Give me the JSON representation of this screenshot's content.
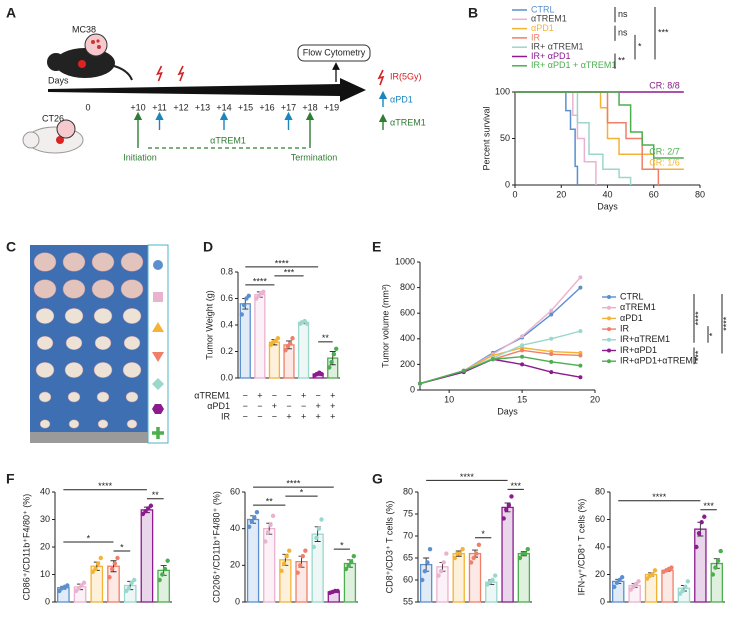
{
  "panels": [
    "A",
    "B",
    "C",
    "D",
    "E",
    "F",
    "G"
  ],
  "schematic": {
    "mouse_top": "MC38",
    "mouse_bottom": "CT26",
    "days_label": "Days",
    "days": [
      "0",
      "+10",
      "+11",
      "+12",
      "+13",
      "+14",
      "+15",
      "+16",
      "+17",
      "+18",
      "+19"
    ],
    "flow": "Flow Cytometry",
    "legend": [
      "IR(5Gy)",
      "αPD1",
      "αTREM1"
    ],
    "initiation": "Initiation",
    "termination": "Termination",
    "dashed_label": "αTREM1"
  },
  "chart_data": [
    {
      "type": "step",
      "xlabel": "Days",
      "ylabel": "Percent survival",
      "xlim": [
        0,
        80
      ],
      "xticks": [
        0,
        20,
        40,
        60,
        80
      ],
      "ylim": [
        0,
        100
      ],
      "yticks": [
        0,
        50,
        100
      ],
      "series": [
        {
          "name": "CTRL",
          "color": "#5b8fd0",
          "x": [
            0,
            22,
            24,
            26,
            27
          ],
          "values": [
            100,
            80,
            60,
            20,
            0
          ]
        },
        {
          "name": "αTREM1",
          "color": "#e9b3cf",
          "x": [
            0,
            25,
            27,
            30,
            35
          ],
          "values": [
            100,
            75,
            50,
            25,
            0
          ]
        },
        {
          "name": "αPD1",
          "color": "#f5b335",
          "x": [
            0,
            37,
            40,
            45,
            60,
            73
          ],
          "values": [
            100,
            83,
            50,
            33,
            17,
            17
          ]
        },
        {
          "name": "IR",
          "color": "#ef7f68",
          "x": [
            0,
            40,
            48,
            55,
            62
          ],
          "values": [
            100,
            67,
            50,
            17,
            0
          ]
        },
        {
          "name": "IR+ αTREM1",
          "color": "#9ad7cc",
          "x": [
            0,
            27,
            32,
            38,
            45,
            50
          ],
          "values": [
            100,
            67,
            33,
            17,
            8,
            0
          ]
        },
        {
          "name": "IR+ αPD1",
          "color": "#8b1b8f",
          "x": [
            0,
            73
          ],
          "values": [
            100,
            100
          ]
        },
        {
          "name": "IR+ αPD1 + αTREM1",
          "color": "#4cae4f",
          "x": [
            0,
            45,
            50,
            55,
            60,
            73
          ],
          "values": [
            100,
            86,
            57,
            43,
            29,
            29
          ]
        }
      ],
      "significance": [
        {
          "series": [
            0,
            1
          ],
          "label": "ns"
        },
        {
          "series": [
            2,
            3
          ],
          "label": "ns"
        },
        {
          "series": [
            3,
            5
          ],
          "label": "*"
        },
        {
          "series": [
            5,
            6
          ],
          "label": "**"
        },
        {
          "series": [
            0,
            5
          ],
          "label": "***"
        }
      ],
      "annotations": [
        {
          "text": "CR: 8/8",
          "series": 5
        },
        {
          "text": "CR: 2/7",
          "series": 6
        },
        {
          "text": "CR: 1/6",
          "series": 2
        }
      ]
    },
    {
      "type": "bar",
      "ylabel": "Tumor Weight (g)",
      "ylim": [
        0,
        0.8
      ],
      "yticks": [
        {
          "value": 0,
          "label": "0.0"
        },
        {
          "value": 0.2,
          "label": "0.2"
        },
        {
          "value": 0.4,
          "label": "0.4"
        },
        {
          "value": 0.6,
          "label": "0.6"
        },
        {
          "value": 0.8,
          "label": "0.8"
        }
      ],
      "colors": [
        "#5b8fd0",
        "#e9b3cf",
        "#f5b335",
        "#ef7f68",
        "#9ad7cc",
        "#8b1b8f",
        "#4cae4f"
      ],
      "values": [
        0.56,
        0.63,
        0.27,
        0.25,
        0.42,
        0.03,
        0.15
      ],
      "errors": [
        0.04,
        0.02,
        0.02,
        0.03,
        0.01,
        0.01,
        0.05
      ],
      "points": [
        [
          0.48,
          0.55,
          0.6,
          0.62
        ],
        [
          0.6,
          0.62,
          0.64,
          0.65
        ],
        [
          0.25,
          0.27,
          0.28,
          0.3
        ],
        [
          0.21,
          0.24,
          0.26,
          0.3
        ],
        [
          0.41,
          0.42,
          0.43,
          0.41
        ],
        [
          0.02,
          0.03,
          0.04,
          0.03
        ],
        [
          0.08,
          0.12,
          0.18,
          0.22
        ]
      ],
      "brackets": [
        {
          "groups": [
            0,
            5
          ],
          "label": "****"
        },
        {
          "groups": [
            5,
            6
          ],
          "label": "**"
        },
        {
          "groups": [
            0,
            2
          ],
          "label": "****"
        },
        {
          "groups": [
            2,
            4
          ],
          "label": "***"
        }
      ],
      "table": [
        {
          "name": "αTREM1",
          "signs": [
            "−",
            "+",
            "−",
            "−",
            "+",
            "−",
            "+"
          ]
        },
        {
          "name": "αPD1",
          "signs": [
            "−",
            "−",
            "+",
            "−",
            "−",
            "+",
            "+"
          ]
        },
        {
          "name": "IR",
          "signs": [
            "−",
            "−",
            "−",
            "+",
            "+",
            "+",
            "+"
          ]
        }
      ]
    },
    {
      "type": "line",
      "xlabel": "Days",
      "ylabel": "Tumor volume (mm³)",
      "xlim": [
        8,
        20
      ],
      "xticks": [
        10,
        15,
        20
      ],
      "ylim": [
        0,
        1000
      ],
      "yticks": [
        0,
        200,
        400,
        600,
        800,
        1000
      ],
      "x": [
        8,
        11,
        13,
        15,
        17,
        19
      ],
      "series": [
        {
          "name": "CTRL",
          "color": "#5b8fd0",
          "values": [
            50,
            150,
            290,
            410,
            590,
            800
          ]
        },
        {
          "name": "αTREM1",
          "color": "#e9b3cf",
          "values": [
            50,
            150,
            280,
            420,
            620,
            880
          ]
        },
        {
          "name": "αPD1",
          "color": "#f5b335",
          "values": [
            50,
            150,
            270,
            330,
            300,
            290
          ]
        },
        {
          "name": "IR",
          "color": "#ef7f68",
          "values": [
            50,
            150,
            240,
            310,
            280,
            270
          ]
        },
        {
          "name": "IR+αTREM1",
          "color": "#9ad7cc",
          "values": [
            50,
            150,
            250,
            350,
            400,
            460
          ]
        },
        {
          "name": "IR+αPD1",
          "color": "#8b1b8f",
          "values": [
            50,
            140,
            240,
            200,
            140,
            100
          ]
        },
        {
          "name": "IR+αPD1+αTREM1",
          "color": "#4cae4f",
          "values": [
            50,
            150,
            240,
            260,
            220,
            190
          ]
        }
      ],
      "significance": [
        {
          "series": [
            0,
            4
          ],
          "label": "****"
        },
        {
          "series": [
            3,
            4
          ],
          "label": "*"
        },
        {
          "series": [
            0,
            5
          ],
          "label": "****"
        },
        {
          "series": [
            5,
            6
          ],
          "label": "***"
        }
      ]
    },
    {
      "type": "bar",
      "ylabel": "CD86⁺/CD11b⁺F4/80⁺ (%)",
      "ylim": [
        0,
        40
      ],
      "yticks": [
        0,
        10,
        20,
        30,
        40
      ],
      "colors": [
        "#5b8fd0",
        "#e9b3cf",
        "#f5b335",
        "#ef7f68",
        "#9ad7cc",
        "#8b1b8f",
        "#4cae4f"
      ],
      "values": [
        5.2,
        5.5,
        13,
        13,
        6,
        33.5,
        11.5
      ],
      "errors": [
        0.5,
        1,
        1.5,
        2,
        1.5,
        1,
        1.8
      ],
      "points": [
        [
          4,
          5,
          5.5,
          6
        ],
        [
          4,
          5,
          6,
          7
        ],
        [
          11,
          12,
          14,
          16
        ],
        [
          9,
          12,
          14,
          16
        ],
        [
          4,
          5,
          7,
          8
        ],
        [
          32,
          33,
          34,
          35
        ],
        [
          8,
          10,
          12,
          15
        ]
      ],
      "brackets": [
        {
          "groups": [
            0,
            5
          ],
          "label": "****"
        },
        {
          "groups": [
            5,
            6
          ],
          "label": "**"
        },
        {
          "groups": [
            0,
            3
          ],
          "label": "*"
        },
        {
          "groups": [
            3,
            4
          ],
          "label": "*"
        }
      ]
    },
    {
      "type": "bar",
      "ylabel": "CD206⁺/CD11b⁺F4/80⁺ (%)",
      "ylim": [
        0,
        60
      ],
      "yticks": [
        0,
        20,
        40,
        60
      ],
      "colors": [
        "#5b8fd0",
        "#e9b3cf",
        "#f5b335",
        "#ef7f68",
        "#9ad7cc",
        "#8b1b8f",
        "#4cae4f"
      ],
      "values": [
        45,
        40,
        23,
        22,
        37,
        5.5,
        21
      ],
      "errors": [
        2,
        3,
        3,
        3,
        4,
        0.3,
        2
      ],
      "points": [
        [
          41,
          44,
          46,
          49
        ],
        [
          33,
          38,
          42,
          47
        ],
        [
          17,
          21,
          25,
          28
        ],
        [
          16,
          20,
          25,
          28
        ],
        [
          30,
          35,
          40,
          45
        ],
        [
          5,
          5.5,
          6,
          6
        ],
        [
          18,
          20,
          22,
          25
        ]
      ],
      "brackets": [
        {
          "groups": [
            0,
            5
          ],
          "label": "****"
        },
        {
          "groups": [
            5,
            6
          ],
          "label": "*"
        },
        {
          "groups": [
            0,
            2
          ],
          "label": "**"
        },
        {
          "groups": [
            2,
            4
          ],
          "label": "*"
        }
      ]
    },
    {
      "type": "bar",
      "ylabel": "CD8⁺/CD3⁺ T cells (%)",
      "ylim": [
        55,
        80
      ],
      "yticks": [
        55,
        60,
        65,
        70,
        75,
        80
      ],
      "colors": [
        "#5b8fd0",
        "#e9b3cf",
        "#f5b335",
        "#ef7f68",
        "#9ad7cc",
        "#8b1b8f",
        "#4cae4f"
      ],
      "values": [
        63.5,
        63,
        66,
        66,
        59.5,
        76.5,
        66
      ],
      "errors": [
        1.5,
        1,
        0.6,
        0.8,
        0.5,
        1,
        0.5
      ],
      "points": [
        [
          60,
          62,
          64,
          67
        ],
        [
          61,
          62,
          64,
          66
        ],
        [
          65,
          66,
          66,
          67
        ],
        [
          64,
          65,
          66,
          68
        ],
        [
          59,
          59.5,
          60,
          61
        ],
        [
          74,
          76,
          77,
          79
        ],
        [
          65,
          66,
          66,
          67
        ]
      ],
      "brackets": [
        {
          "groups": [
            0,
            5
          ],
          "label": "****"
        },
        {
          "groups": [
            5,
            6
          ],
          "label": "***"
        },
        {
          "groups": [
            3,
            4
          ],
          "label": "*"
        }
      ]
    },
    {
      "type": "bar",
      "ylabel": "IFN-γ⁺/CD8⁺ T cells (%)",
      "ylim": [
        0,
        80
      ],
      "yticks": [
        0,
        20,
        40,
        60,
        80
      ],
      "colors": [
        "#5b8fd0",
        "#e9b3cf",
        "#f5b335",
        "#ef7f68",
        "#9ad7cc",
        "#8b1b8f",
        "#4cae4f"
      ],
      "values": [
        15,
        12,
        20,
        23,
        10,
        53,
        28
      ],
      "errors": [
        1.5,
        1.3,
        1.2,
        0.6,
        2,
        5,
        3.5
      ],
      "points": [
        [
          11,
          14,
          16,
          18
        ],
        [
          9,
          11,
          13,
          15
        ],
        [
          17,
          19,
          20,
          23
        ],
        [
          22,
          23,
          24,
          25
        ],
        [
          6,
          8,
          11,
          15
        ],
        [
          40,
          50,
          58,
          62
        ],
        [
          20,
          25,
          30,
          37
        ]
      ],
      "brackets": [
        {
          "groups": [
            0,
            5
          ],
          "label": "****"
        },
        {
          "groups": [
            5,
            6
          ],
          "label": "***"
        }
      ]
    }
  ]
}
